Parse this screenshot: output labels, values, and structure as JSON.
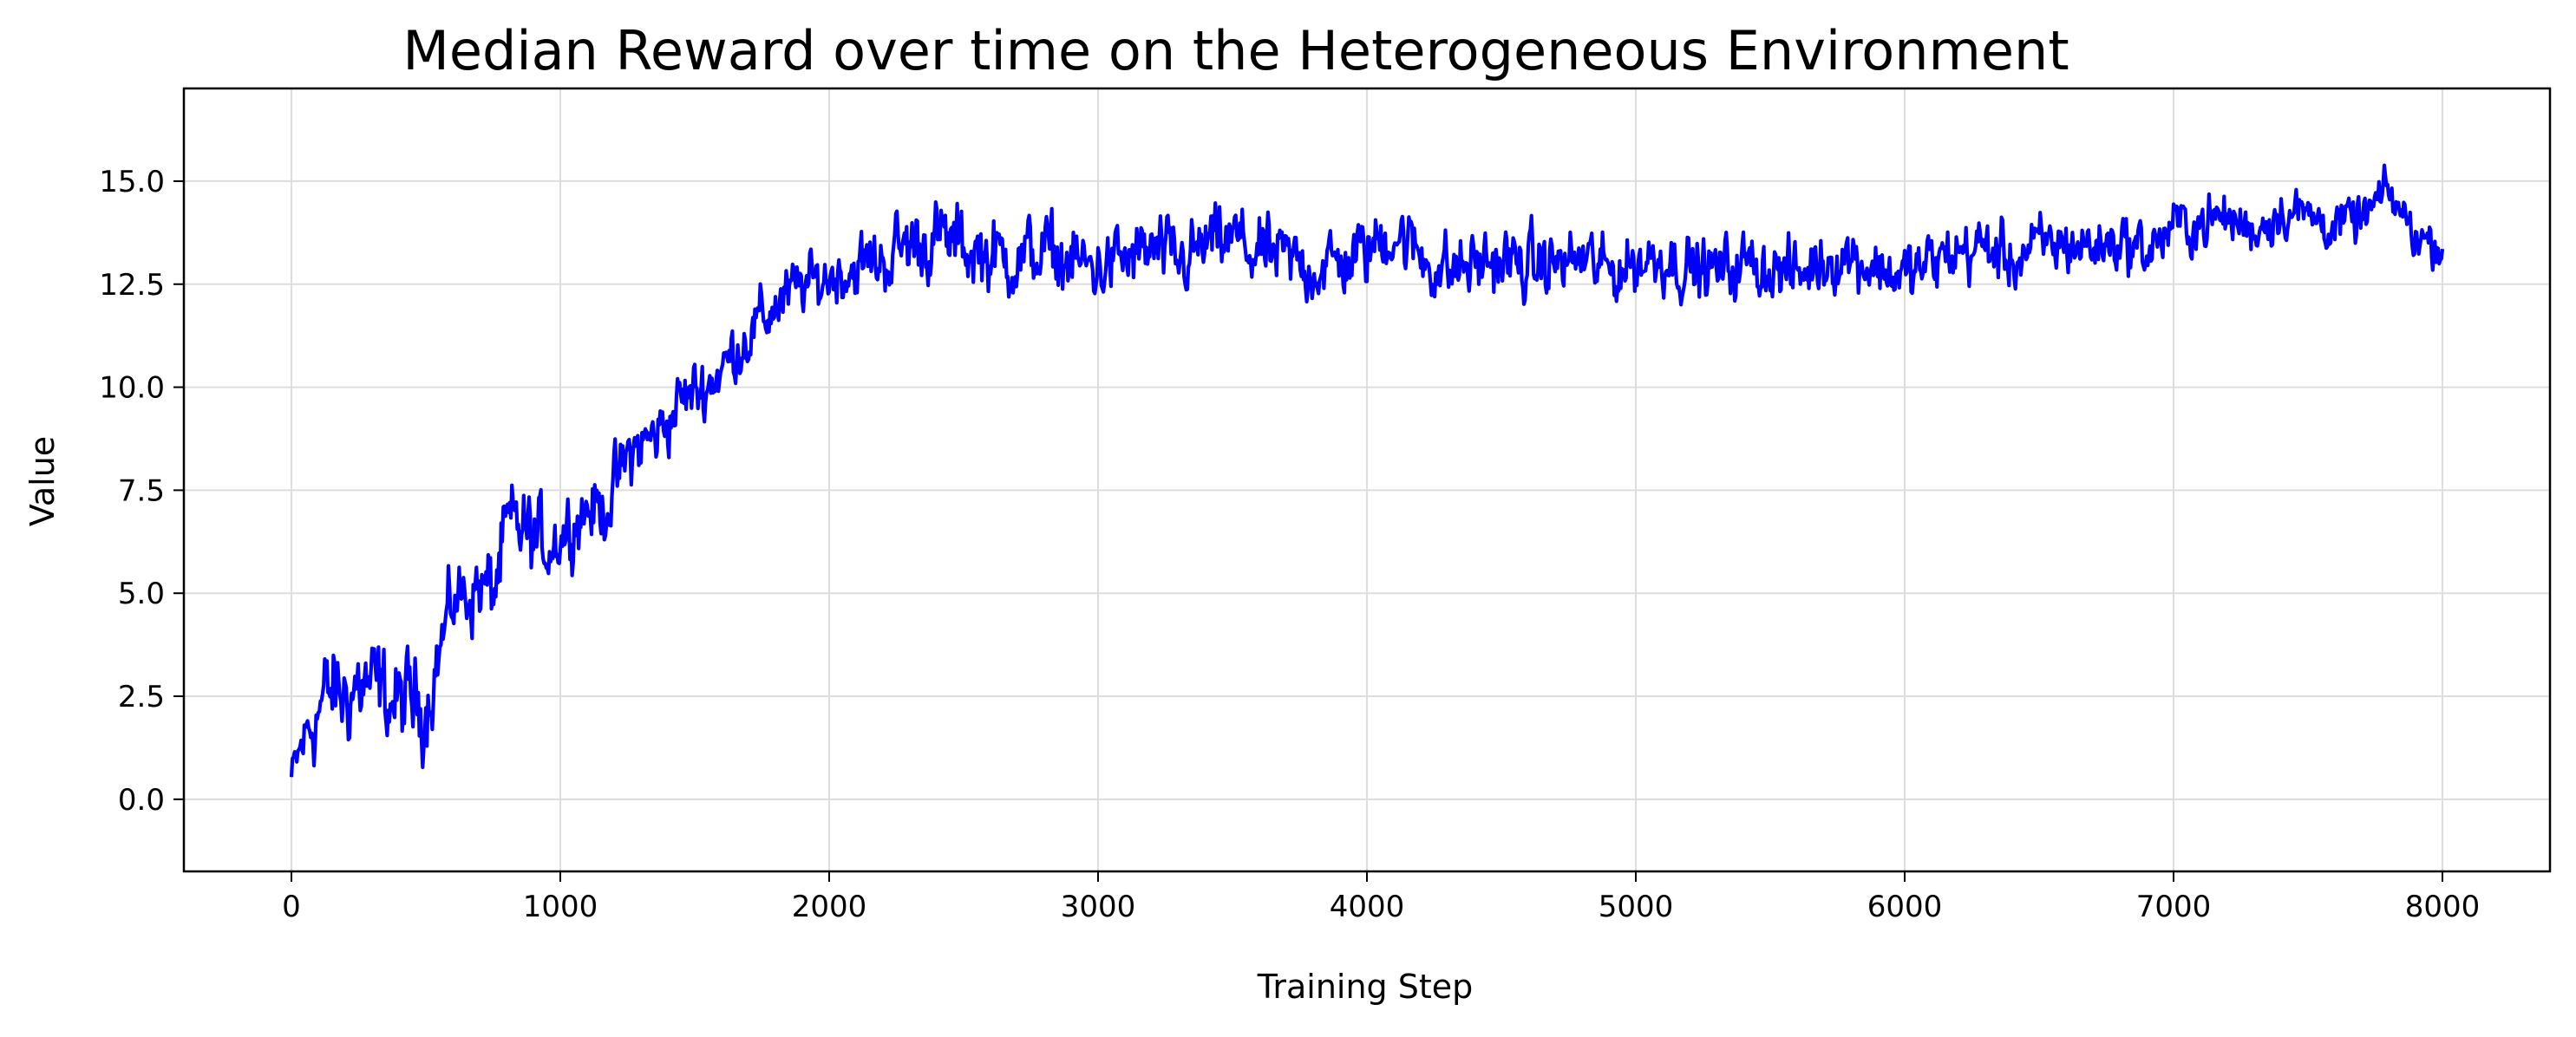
{
  "chart_data": {
    "type": "line",
    "title": "Median Reward over time on the Heterogeneous Environment",
    "xlabel": "Training Step",
    "ylabel": "Value",
    "xlim": [
      -400,
      8400
    ],
    "ylim": [
      -1.75,
      17.25
    ],
    "x_ticks": [
      0,
      1000,
      2000,
      3000,
      4000,
      5000,
      6000,
      7000,
      8000
    ],
    "y_ticks": [
      0.0,
      2.5,
      5.0,
      7.5,
      10.0,
      12.5,
      15.0
    ],
    "y_tick_labels": [
      "0.0",
      "2.5",
      "5.0",
      "7.5",
      "10.0",
      "12.5",
      "15.0"
    ],
    "grid": true,
    "legend": "none",
    "series": [
      {
        "color": "#0000ff",
        "x": [
          0,
          50,
          100,
          150,
          200,
          250,
          300,
          350,
          400,
          450,
          500,
          550,
          600,
          650,
          700,
          750,
          800,
          850,
          900,
          950,
          1000,
          1050,
          1100,
          1150,
          1200,
          1250,
          1300,
          1350,
          1400,
          1450,
          1500,
          1550,
          1600,
          1650,
          1700,
          1750,
          1800,
          1850,
          1900,
          1950,
          2000,
          2100,
          2200,
          2300,
          2400,
          2500,
          2600,
          2700,
          2800,
          2900,
          3000,
          3100,
          3200,
          3300,
          3400,
          3500,
          3600,
          3700,
          3800,
          3900,
          4000,
          4100,
          4200,
          4300,
          4400,
          4500,
          4600,
          4700,
          4800,
          4900,
          5000,
          5100,
          5200,
          5300,
          5400,
          5500,
          5600,
          5700,
          5800,
          5900,
          6000,
          6100,
          6200,
          6300,
          6400,
          6500,
          6600,
          6700,
          6800,
          6900,
          7000,
          7100,
          7200,
          7300,
          7400,
          7500,
          7600,
          7700,
          7800,
          7900,
          8000
        ],
        "y": [
          0.5,
          1.5,
          2.2,
          2.6,
          2.5,
          2.8,
          2.7,
          2.5,
          2.3,
          2.4,
          2.3,
          3.6,
          4.8,
          5.0,
          5.2,
          5.0,
          6.4,
          6.6,
          6.3,
          6.2,
          6.4,
          6.8,
          7.1,
          7.0,
          7.5,
          8.3,
          8.6,
          8.8,
          9.2,
          9.7,
          9.9,
          10.1,
          10.4,
          10.9,
          11.3,
          11.6,
          12.0,
          12.2,
          12.5,
          12.5,
          12.7,
          12.9,
          13.1,
          13.5,
          13.6,
          13.4,
          13.2,
          13.1,
          13.3,
          13.0,
          12.9,
          13.1,
          13.3,
          13.0,
          13.4,
          13.6,
          13.2,
          13.1,
          12.9,
          13.0,
          13.3,
          13.8,
          13.2,
          12.8,
          13.0,
          13.1,
          12.9,
          13.0,
          13.1,
          12.8,
          13.0,
          13.2,
          12.9,
          12.8,
          13.0,
          12.9,
          12.7,
          13.1,
          13.2,
          12.9,
          12.7,
          13.0,
          13.3,
          13.4,
          13.1,
          13.4,
          13.5,
          13.4,
          13.6,
          13.3,
          13.9,
          14.0,
          14.1,
          13.8,
          14.3,
          14.2,
          13.9,
          14.1,
          14.7,
          13.7,
          13.4
        ],
        "noise_envelope": {
          "x": [
            0,
            100,
            200,
            400,
            500,
            600,
            800,
            1000,
            1200,
            1500,
            1800,
            2000,
            2300,
            3000,
            4000,
            5000,
            6000,
            7000,
            8000
          ],
          "amplitude": [
            0.6,
            1.4,
            1.4,
            1.3,
            1.3,
            1.0,
            1.3,
            1.0,
            1.0,
            0.9,
            0.9,
            0.8,
            1.1,
            1.0,
            1.0,
            0.9,
            0.9,
            0.8,
            0.6
          ]
        }
      }
    ]
  }
}
